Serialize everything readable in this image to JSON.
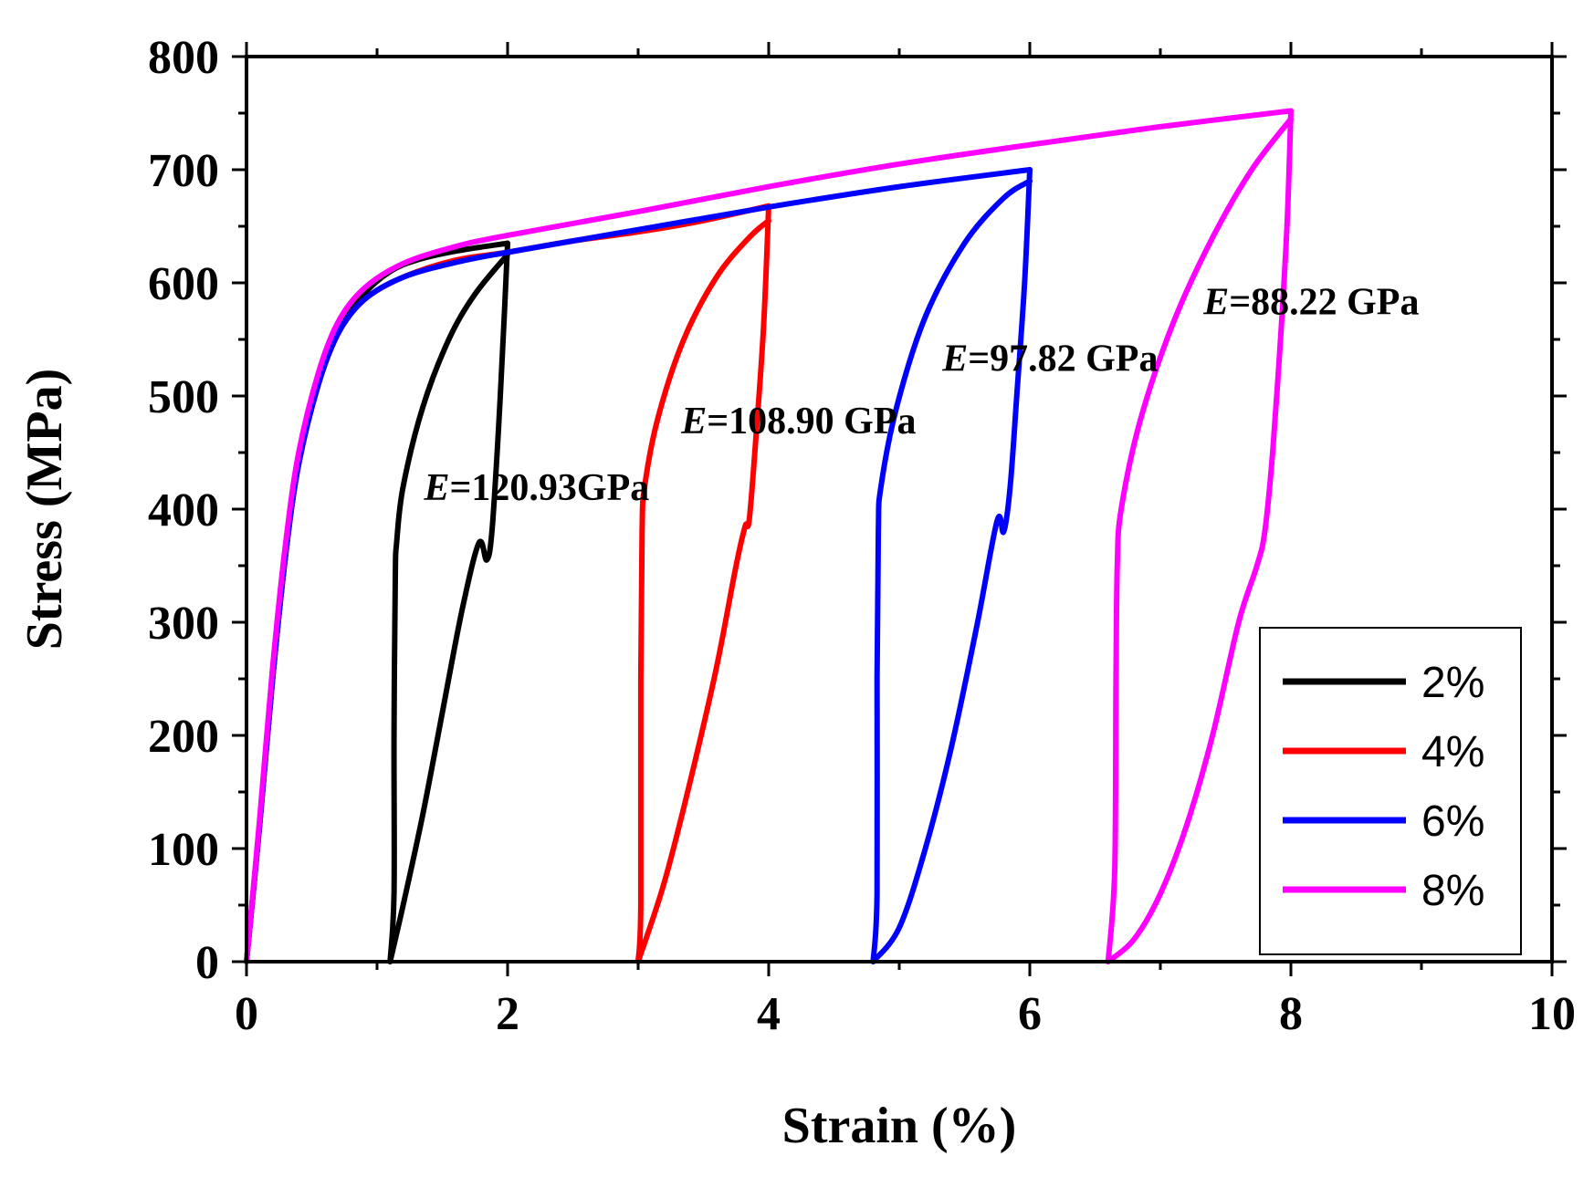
{
  "chart_data": {
    "type": "line",
    "title": "",
    "xlabel": "Strain (%)",
    "ylabel": "Stress (MPa)",
    "xlim": [
      0,
      10
    ],
    "ylim": [
      0,
      800
    ],
    "xticks": [
      0,
      2,
      4,
      6,
      8,
      10
    ],
    "yticks": [
      0,
      100,
      200,
      300,
      400,
      500,
      600,
      700,
      800
    ],
    "grid": false,
    "legend_position": "bottom-right",
    "series": [
      {
        "name": "2%",
        "color": "#000000",
        "loading": [
          [
            0,
            0
          ],
          [
            0.1,
            120
          ],
          [
            0.2,
            250
          ],
          [
            0.3,
            360
          ],
          [
            0.4,
            440
          ],
          [
            0.55,
            510
          ],
          [
            0.7,
            555
          ],
          [
            0.9,
            590
          ],
          [
            1.1,
            610
          ],
          [
            1.3,
            620
          ],
          [
            1.6,
            628
          ],
          [
            2.0,
            635
          ]
        ],
        "unloading": [
          [
            2.0,
            635
          ],
          [
            1.97,
            560
          ],
          [
            1.93,
            470
          ],
          [
            1.88,
            380
          ],
          [
            1.84,
            355
          ],
          [
            1.78,
            370
          ],
          [
            1.65,
            310
          ],
          [
            1.5,
            220
          ],
          [
            1.35,
            130
          ],
          [
            1.2,
            50
          ],
          [
            1.1,
            0
          ]
        ],
        "reloading": [
          [
            1.1,
            0
          ],
          [
            1.13,
            60
          ],
          [
            1.13,
            200
          ],
          [
            1.14,
            340
          ],
          [
            1.15,
            370
          ],
          [
            1.2,
            420
          ],
          [
            1.35,
            490
          ],
          [
            1.55,
            550
          ],
          [
            1.75,
            590
          ],
          [
            2.0,
            625
          ]
        ]
      },
      {
        "name": "4%",
        "color": "#ff0000",
        "loading": [
          [
            0,
            0
          ],
          [
            0.1,
            120
          ],
          [
            0.2,
            250
          ],
          [
            0.3,
            360
          ],
          [
            0.4,
            440
          ],
          [
            0.55,
            510
          ],
          [
            0.7,
            555
          ],
          [
            0.9,
            585
          ],
          [
            1.2,
            605
          ],
          [
            1.6,
            620
          ],
          [
            2.0,
            627
          ],
          [
            2.5,
            637
          ],
          [
            3.0,
            645
          ],
          [
            3.5,
            655
          ],
          [
            4.0,
            668
          ]
        ],
        "unloading": [
          [
            4.0,
            668
          ],
          [
            3.96,
            560
          ],
          [
            3.9,
            460
          ],
          [
            3.85,
            390
          ],
          [
            3.82,
            385
          ],
          [
            3.75,
            350
          ],
          [
            3.6,
            260
          ],
          [
            3.4,
            160
          ],
          [
            3.2,
            70
          ],
          [
            3.0,
            0
          ]
        ],
        "reloading": [
          [
            3.0,
            0
          ],
          [
            3.02,
            50
          ],
          [
            3.02,
            250
          ],
          [
            3.03,
            380
          ],
          [
            3.05,
            420
          ],
          [
            3.15,
            480
          ],
          [
            3.35,
            550
          ],
          [
            3.6,
            605
          ],
          [
            3.85,
            640
          ],
          [
            4.0,
            655
          ]
        ]
      },
      {
        "name": "6%",
        "color": "#0000ff",
        "loading": [
          [
            0,
            0
          ],
          [
            0.1,
            120
          ],
          [
            0.2,
            250
          ],
          [
            0.3,
            360
          ],
          [
            0.4,
            440
          ],
          [
            0.55,
            510
          ],
          [
            0.7,
            555
          ],
          [
            0.9,
            585
          ],
          [
            1.2,
            605
          ],
          [
            1.6,
            618
          ],
          [
            2.0,
            627
          ],
          [
            3.0,
            647
          ],
          [
            4.0,
            667
          ],
          [
            5.0,
            685
          ],
          [
            6.0,
            700
          ]
        ],
        "unloading": [
          [
            6.0,
            700
          ],
          [
            5.96,
            600
          ],
          [
            5.9,
            500
          ],
          [
            5.85,
            420
          ],
          [
            5.8,
            380
          ],
          [
            5.75,
            390
          ],
          [
            5.6,
            300
          ],
          [
            5.4,
            190
          ],
          [
            5.2,
            100
          ],
          [
            5.0,
            30
          ],
          [
            4.8,
            0
          ]
        ],
        "reloading": [
          [
            4.8,
            0
          ],
          [
            4.83,
            60
          ],
          [
            4.83,
            250
          ],
          [
            4.84,
            380
          ],
          [
            4.86,
            420
          ],
          [
            4.98,
            490
          ],
          [
            5.2,
            570
          ],
          [
            5.5,
            635
          ],
          [
            5.8,
            675
          ],
          [
            6.0,
            690
          ]
        ]
      },
      {
        "name": "8%",
        "color": "#ff00ff",
        "loading": [
          [
            0,
            0
          ],
          [
            0.1,
            125
          ],
          [
            0.2,
            260
          ],
          [
            0.3,
            370
          ],
          [
            0.4,
            450
          ],
          [
            0.55,
            520
          ],
          [
            0.7,
            565
          ],
          [
            0.9,
            595
          ],
          [
            1.2,
            617
          ],
          [
            1.6,
            632
          ],
          [
            2.0,
            642
          ],
          [
            3.0,
            663
          ],
          [
            4.0,
            685
          ],
          [
            5.0,
            705
          ],
          [
            6.0,
            722
          ],
          [
            7.0,
            738
          ],
          [
            8.0,
            752
          ]
        ],
        "unloading": [
          [
            8.0,
            752
          ],
          [
            7.97,
            650
          ],
          [
            7.92,
            550
          ],
          [
            7.86,
            450
          ],
          [
            7.8,
            380
          ],
          [
            7.74,
            350
          ],
          [
            7.6,
            300
          ],
          [
            7.4,
            200
          ],
          [
            7.2,
            120
          ],
          [
            7.0,
            60
          ],
          [
            6.8,
            20
          ],
          [
            6.6,
            0
          ]
        ],
        "reloading": [
          [
            6.6,
            0
          ],
          [
            6.65,
            80
          ],
          [
            6.66,
            250
          ],
          [
            6.67,
            350
          ],
          [
            6.7,
            400
          ],
          [
            6.85,
            480
          ],
          [
            7.1,
            565
          ],
          [
            7.4,
            640
          ],
          [
            7.7,
            700
          ],
          [
            8.0,
            745
          ]
        ]
      }
    ],
    "annotations": [
      {
        "label": "E",
        "text": "=120.93GPa",
        "x": 1.36,
        "y": 408
      },
      {
        "label": "E",
        "text": "=108.90 GPa",
        "x": 3.33,
        "y": 467
      },
      {
        "label": "E",
        "text": "=97.82 GPa",
        "x": 5.33,
        "y": 522
      },
      {
        "label": "E",
        "text": "=88.22 GPa",
        "x": 7.33,
        "y": 572
      }
    ]
  }
}
